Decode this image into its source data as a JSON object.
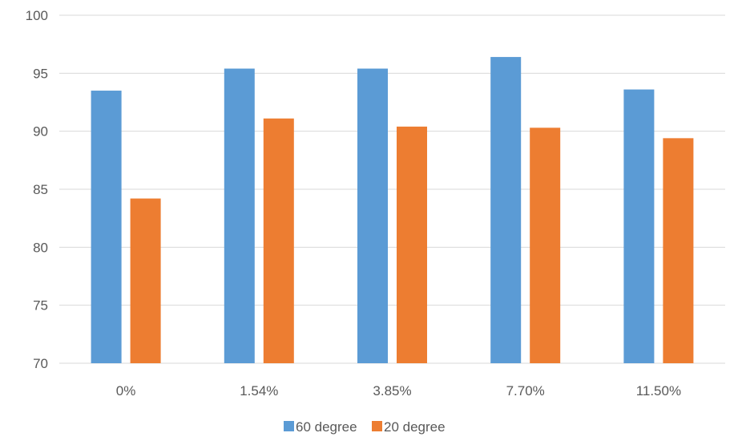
{
  "chart_data": {
    "type": "bar",
    "title": "",
    "xlabel": "",
    "ylabel": "",
    "categories": [
      "0%",
      "1.54%",
      "3.85%",
      "7.70%",
      "11.50%"
    ],
    "series": [
      {
        "name": "60 degree",
        "color": "#5b9bd5",
        "values": [
          93.5,
          95.4,
          95.4,
          96.4,
          93.6
        ]
      },
      {
        "name": "20 degree",
        "color": "#ed7d31",
        "values": [
          84.2,
          91.1,
          90.4,
          90.3,
          89.4
        ]
      }
    ],
    "ylim": [
      70,
      100
    ],
    "yticks": [
      70,
      75,
      80,
      85,
      90,
      95,
      100
    ],
    "grid": true,
    "legend_position": "bottom"
  }
}
